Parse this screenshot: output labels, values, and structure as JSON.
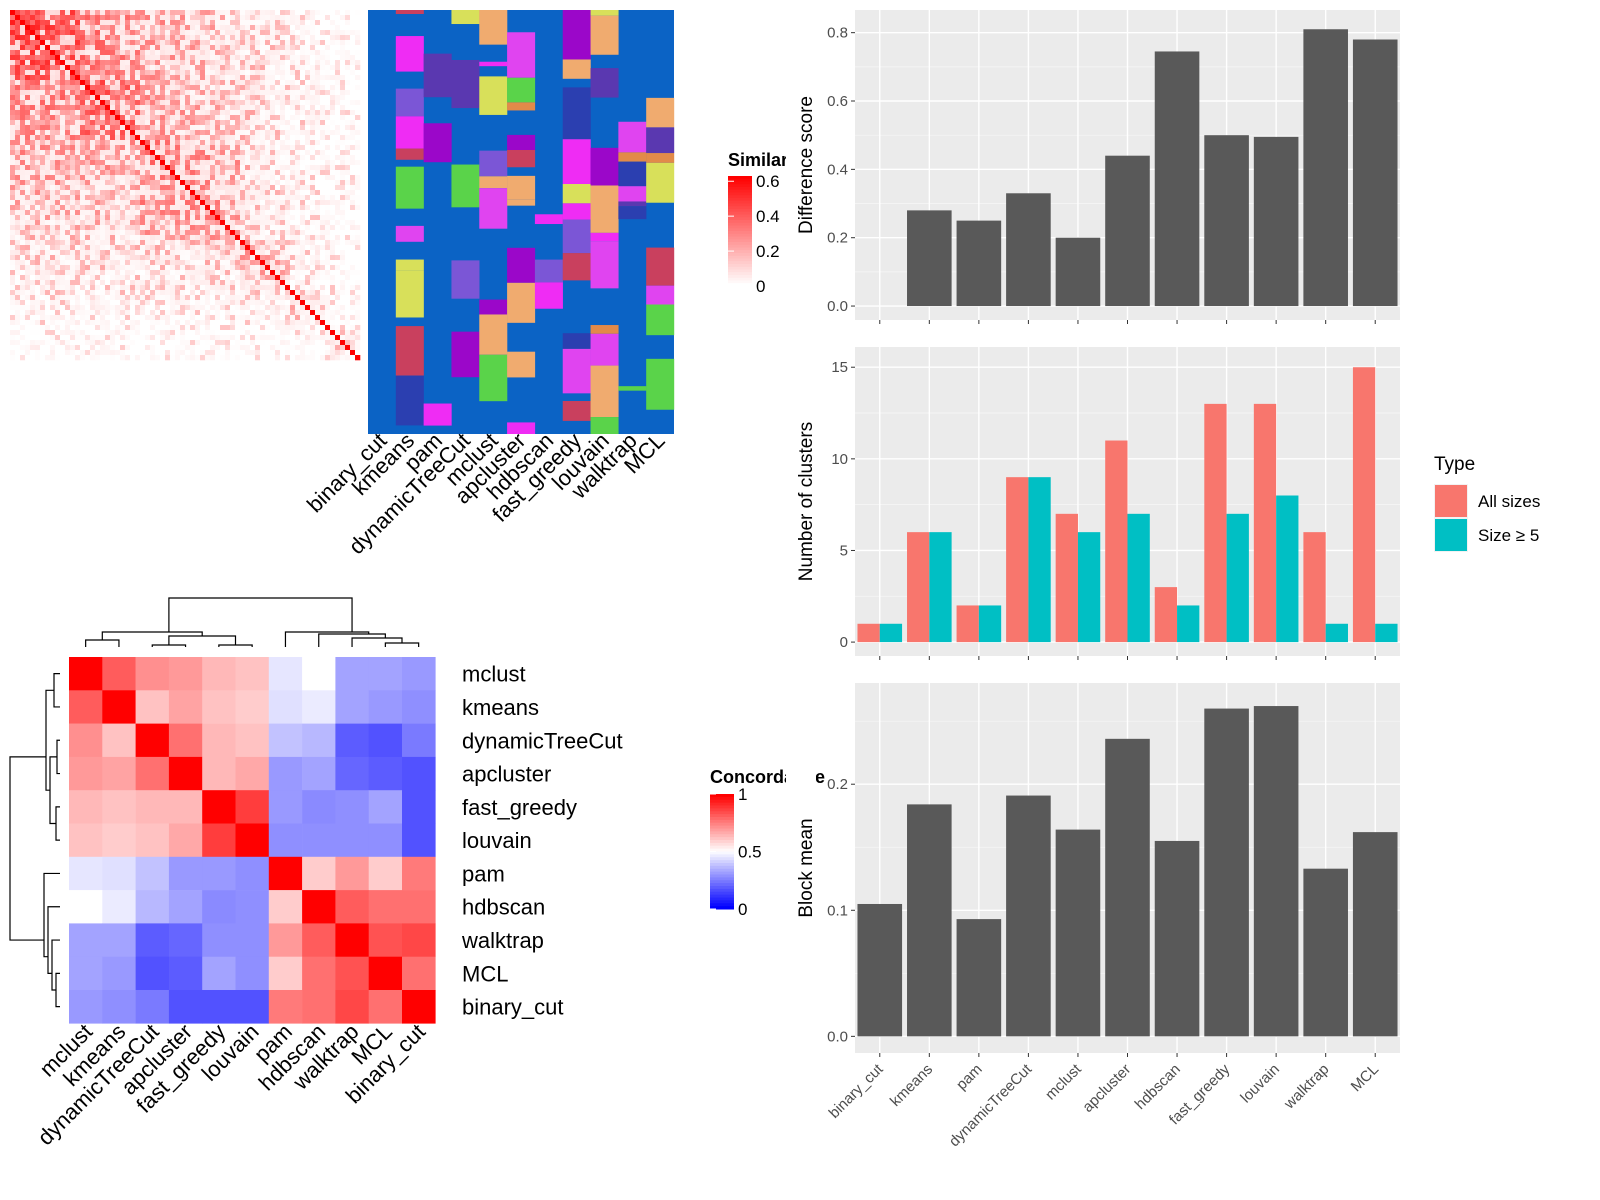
{
  "chart_data": [
    {
      "id": "similarity-heatmap",
      "type": "heatmap",
      "legend_title": "Similarity",
      "legend_ticks": [
        0,
        0.2,
        0.4,
        0.6
      ],
      "color_low": "#ffffff",
      "color_high": "#ff0000",
      "n": 70,
      "methods": [
        "binary_cut",
        "kmeans",
        "pam",
        "dynamicTreeCut",
        "mclust",
        "apcluster",
        "hdbscan",
        "fast_greedy",
        "louvain",
        "walktrap",
        "MCL"
      ],
      "method_colors": {
        "base": "#0b63c5",
        "palette": [
          "#ef2cf4",
          "#7b56d6",
          "#c9405e",
          "#e28a49",
          "#f0ab6f",
          "#5a38b0",
          "#5ad34a",
          "#9b07c9",
          "#e044f0",
          "#2b3fb0",
          "#d8e05a"
        ]
      }
    },
    {
      "id": "concordance-heatmap",
      "type": "heatmap",
      "legend_title": "Concordance",
      "legend_ticks": [
        0,
        0.5,
        1
      ],
      "color_low": "#0000ff",
      "color_mid": "#ffffff",
      "color_high": "#ff0000",
      "rows": [
        "mclust",
        "kmeans",
        "dynamicTreeCut",
        "apcluster",
        "fast_greedy",
        "louvain",
        "pam",
        "hdbscan",
        "walktrap",
        "MCL",
        "binary_cut"
      ],
      "cols": [
        "mclust",
        "kmeans",
        "dynamicTreeCut",
        "apcluster",
        "fast_greedy",
        "louvain",
        "pam",
        "hdbscan",
        "walktrap",
        "MCL",
        "binary_cut"
      ],
      "values": [
        [
          1.0,
          0.82,
          0.72,
          0.7,
          0.64,
          0.62,
          0.45,
          0.5,
          0.32,
          0.32,
          0.3
        ],
        [
          0.82,
          1.0,
          0.62,
          0.68,
          0.62,
          0.6,
          0.44,
          0.46,
          0.32,
          0.3,
          0.28
        ],
        [
          0.72,
          0.62,
          1.0,
          0.78,
          0.64,
          0.62,
          0.38,
          0.36,
          0.18,
          0.16,
          0.24
        ],
        [
          0.7,
          0.68,
          0.78,
          1.0,
          0.64,
          0.67,
          0.3,
          0.32,
          0.2,
          0.18,
          0.16
        ],
        [
          0.64,
          0.62,
          0.64,
          0.64,
          1.0,
          0.88,
          0.3,
          0.27,
          0.28,
          0.32,
          0.16
        ],
        [
          0.62,
          0.6,
          0.62,
          0.67,
          0.88,
          1.0,
          0.28,
          0.28,
          0.28,
          0.28,
          0.16
        ],
        [
          0.45,
          0.44,
          0.38,
          0.3,
          0.3,
          0.28,
          1.0,
          0.6,
          0.7,
          0.6,
          0.76
        ],
        [
          0.5,
          0.46,
          0.36,
          0.32,
          0.27,
          0.28,
          0.6,
          1.0,
          0.82,
          0.78,
          0.78
        ],
        [
          0.32,
          0.32,
          0.18,
          0.2,
          0.28,
          0.28,
          0.7,
          0.82,
          1.0,
          0.84,
          0.86
        ],
        [
          0.32,
          0.3,
          0.16,
          0.18,
          0.32,
          0.28,
          0.6,
          0.78,
          0.84,
          1.0,
          0.78
        ],
        [
          0.3,
          0.28,
          0.24,
          0.16,
          0.16,
          0.16,
          0.76,
          0.78,
          0.86,
          0.78,
          1.0
        ]
      ]
    },
    {
      "id": "difference-score",
      "type": "bar",
      "categories": [
        "binary_cut",
        "kmeans",
        "pam",
        "dynamicTreeCut",
        "mclust",
        "apcluster",
        "hdbscan",
        "fast_greedy",
        "louvain",
        "walktrap",
        "MCL"
      ],
      "values": [
        0.0,
        0.28,
        0.25,
        0.33,
        0.2,
        0.44,
        0.745,
        0.5,
        0.495,
        0.81,
        0.78
      ],
      "ylabel": "Difference score",
      "ylim": [
        0,
        0.85
      ],
      "yticks": [
        0.0,
        0.2,
        0.4,
        0.6,
        0.8
      ],
      "ytick_labels": [
        "0.0",
        "0.2",
        "0.4",
        "0.6",
        "0.8"
      ],
      "bar_color": "#595959",
      "grid": true
    },
    {
      "id": "number-of-clusters",
      "type": "bar",
      "categories": [
        "binary_cut",
        "kmeans",
        "pam",
        "dynamicTreeCut",
        "mclust",
        "apcluster",
        "hdbscan",
        "fast_greedy",
        "louvain",
        "walktrap",
        "MCL"
      ],
      "series": [
        {
          "name": "All sizes",
          "color": "#f8766d",
          "values": [
            1,
            6,
            2,
            9,
            7,
            11,
            3,
            13,
            13,
            6,
            15
          ]
        },
        {
          "name": "Size ≥ 5",
          "color": "#00bfc4",
          "values": [
            1,
            6,
            2,
            9,
            6,
            7,
            2,
            7,
            8,
            1,
            1
          ]
        }
      ],
      "ylabel": "Number of clusters",
      "ylim": [
        0,
        15.8
      ],
      "yticks": [
        0,
        5,
        10,
        15
      ],
      "ytick_labels": [
        "0",
        "5",
        "10",
        "15"
      ],
      "legend_title": "Type",
      "legend_position": "right",
      "grid": true
    },
    {
      "id": "block-mean",
      "type": "bar",
      "categories": [
        "binary_cut",
        "kmeans",
        "pam",
        "dynamicTreeCut",
        "mclust",
        "apcluster",
        "hdbscan",
        "fast_greedy",
        "louvain",
        "walktrap",
        "MCL"
      ],
      "values": [
        0.105,
        0.184,
        0.093,
        0.191,
        0.164,
        0.236,
        0.155,
        0.26,
        0.262,
        0.133,
        0.162
      ],
      "ylabel": "Block mean",
      "ylim": [
        0,
        0.275
      ],
      "yticks": [
        0.0,
        0.1,
        0.2
      ],
      "ytick_labels": [
        "0.0",
        "0.1",
        "0.2"
      ],
      "bar_color": "#595959",
      "grid": true
    }
  ]
}
